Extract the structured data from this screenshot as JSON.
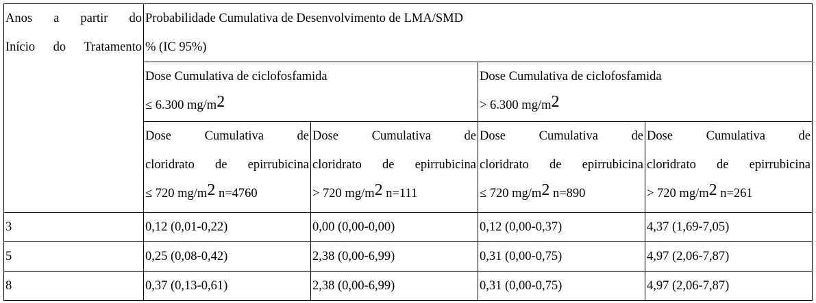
{
  "table": {
    "row_header": {
      "line1": "Anos a partir do",
      "line2": "Início do Tratamento"
    },
    "main_header": {
      "line1": "Probabilidade Cumulativa de Desenvolvimento de LMA/SMD",
      "line2": "% (IC 95%)"
    },
    "groups": [
      {
        "line1": "Dose Cumulativa de ciclofosfamida",
        "line2_prefix": "≤ 6.300 mg/m",
        "sup": "2"
      },
      {
        "line1": "Dose Cumulativa de ciclofosfamida",
        "line2_prefix": "> 6.300 mg/m",
        "sup": "2"
      }
    ],
    "subgroups": [
      {
        "line1": "Dose Cumulativa de",
        "line2": "cloridrato de epirrubicina",
        "line3_prefix": "≤ 720 mg/m",
        "sup": "2",
        "n": " n=4760"
      },
      {
        "line1": "Dose Cumulativa de",
        "line2": "cloridrato de epirrubicina",
        "line3_prefix": "> 720 mg/m",
        "sup": "2",
        "n": " n=111"
      },
      {
        "line1": "Dose Cumulativa de",
        "line2": "cloridrato de epirrubicina",
        "line3_prefix": "≤ 720 mg/m",
        "sup": "2",
        "n": " n=890"
      },
      {
        "line1": "Dose Cumulativa de",
        "line2": "cloridrato de epirrubicina",
        "line3_prefix": "> 720 mg/m",
        "sup": "2",
        "n": " n=261"
      }
    ],
    "rows": [
      {
        "year": "3",
        "values": [
          "0,12 (0,01-0,22)",
          "0,00 (0,00-0,00)",
          "0,12 (0,00-0,37)",
          "4,37 (1,69-7,05)"
        ]
      },
      {
        "year": "5",
        "values": [
          "0,25 (0,08-0,42)",
          "2,38 (0,00-6,99)",
          "0,31 (0,00-0,75)",
          "4,97 (2,06-7,87)"
        ]
      },
      {
        "year": "8",
        "values": [
          "0,37 (0,13-0,61)",
          "2,38 (0,00-6,99)",
          "0,31 (0,00-0,75)",
          "4,97 (2,06-7,87)"
        ]
      }
    ]
  }
}
